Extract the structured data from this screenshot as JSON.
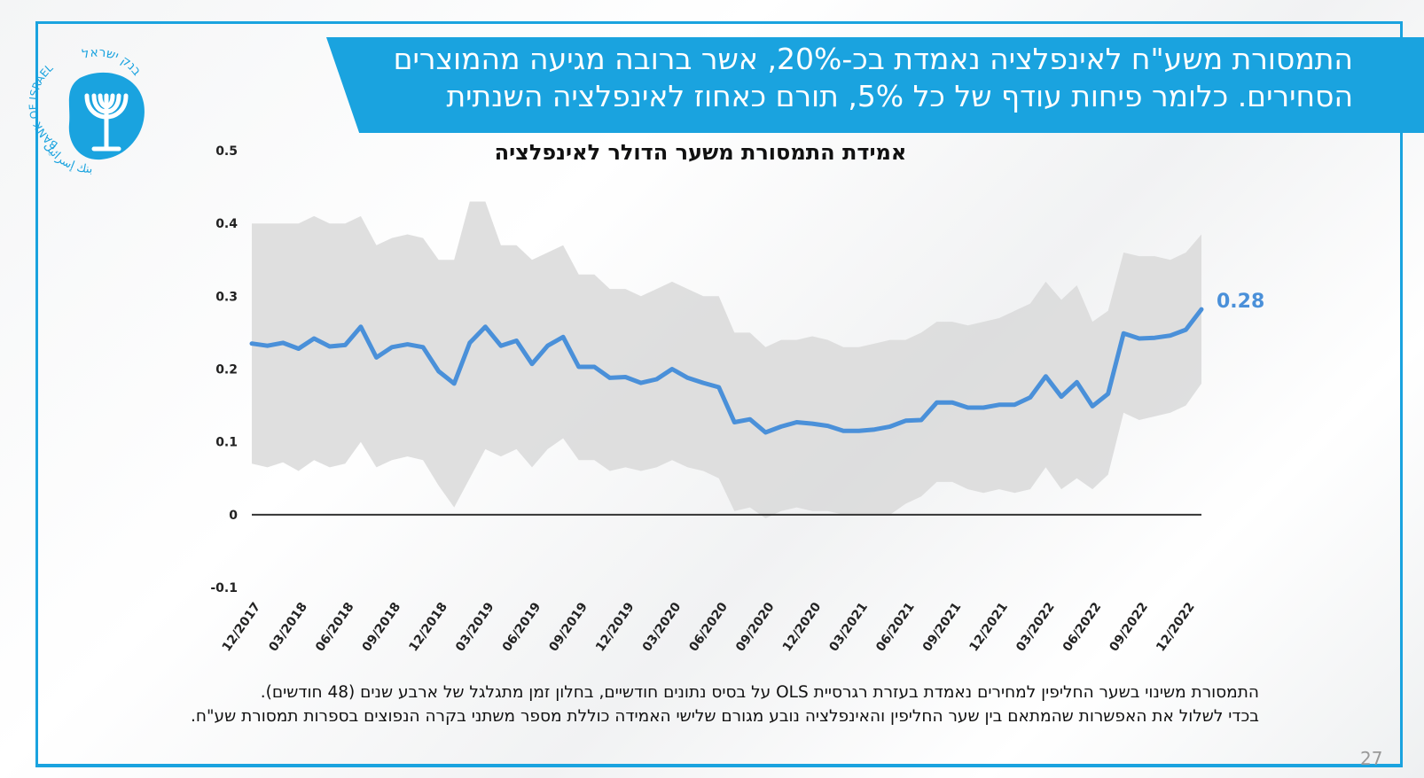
{
  "header": {
    "line1": "התמסורת משע\"ח לאינפלציה נאמדת בכ-20%, אשר ברובה מגיעה מהמוצרים",
    "line2": "הסחירים. כלומר פיחות עודף של כל 5%, תורם כאחוז לאינפלציה השנתית"
  },
  "logo": {
    "text_en": "BANK OF ISRAEL",
    "text_he": "בנק ישראל",
    "text_ar": "بنك إسرائيل",
    "icon": "menorah-icon"
  },
  "notes": {
    "line1": "התמסורת משינוי בשער החליפין למחירים נאמדת בעזרת רגרסיית OLS על בסיס נתונים חודשיים, בחלון זמן מתגלגל של ארבע שנים (48 חודשים).",
    "line2": "בכדי לשלול את האפשרות שהמתאם בין שער החליפין והאינפלציה נובע מגורם שלישי האמידה כוללת מספר משתני בקרה הנפוצים בספרות תמסורת שע\"ח."
  },
  "page_number": "27",
  "colors": {
    "accent": "#1aa3df",
    "line": "#4a90d9",
    "band": "#d9d9d9"
  },
  "chart_data": {
    "type": "line",
    "title": "אמידת התמסורת משער הדולר לאינפלציה",
    "ylim": [
      -0.1,
      0.5
    ],
    "yticks": [
      "0.5",
      "0.4",
      "0.3",
      "0.2",
      "0.1",
      "0",
      "-0.1"
    ],
    "ytick_values": [
      0.5,
      0.4,
      0.3,
      0.2,
      0.1,
      0,
      -0.1
    ],
    "xtick_labels": [
      "12/2017",
      "03/2018",
      "06/2018",
      "09/2018",
      "12/2018",
      "03/2019",
      "06/2019",
      "09/2019",
      "12/2019",
      "03/2020",
      "06/2020",
      "09/2020",
      "12/2020",
      "03/2021",
      "06/2021",
      "09/2021",
      "12/2021",
      "03/2022",
      "06/2022",
      "09/2022",
      "12/2022"
    ],
    "end_label": "0.28",
    "grid": false,
    "series": [
      {
        "values": [
          0.235,
          0.232,
          0.236,
          0.228,
          0.242,
          0.231,
          0.233,
          0.258,
          0.216,
          0.23,
          0.234,
          0.23,
          0.197,
          0.18,
          0.236,
          0.258,
          0.232,
          0.239,
          0.207,
          0.232,
          0.244,
          0.203,
          0.203,
          0.188,
          0.189,
          0.181,
          0.186,
          0.2,
          0.188,
          0.181,
          0.175,
          0.127,
          0.131,
          0.113,
          0.121,
          0.127,
          0.125,
          0.122,
          0.115,
          0.115,
          0.117,
          0.121,
          0.129,
          0.13,
          0.154,
          0.154,
          0.147,
          0.147,
          0.151,
          0.151,
          0.161,
          0.19,
          0.162,
          0.182,
          0.149,
          0.166,
          0.249,
          0.242,
          0.243,
          0.246,
          0.254,
          0.282
        ]
      },
      {
        "upper": [
          0.4,
          0.4,
          0.4,
          0.4,
          0.41,
          0.4,
          0.4,
          0.41,
          0.37,
          0.38,
          0.385,
          0.38,
          0.35,
          0.35,
          0.43,
          0.43,
          0.37,
          0.37,
          0.35,
          0.36,
          0.37,
          0.33,
          0.33,
          0.31,
          0.31,
          0.3,
          0.31,
          0.32,
          0.31,
          0.3,
          0.3,
          0.25,
          0.25,
          0.23,
          0.24,
          0.24,
          0.245,
          0.24,
          0.23,
          0.23,
          0.235,
          0.24,
          0.24,
          0.25,
          0.265,
          0.265,
          0.26,
          0.265,
          0.27,
          0.28,
          0.29,
          0.32,
          0.295,
          0.315,
          0.265,
          0.28,
          0.36,
          0.355,
          0.355,
          0.35,
          0.36,
          0.385
        ],
        "lower": [
          0.07,
          0.065,
          0.072,
          0.06,
          0.075,
          0.065,
          0.07,
          0.1,
          0.065,
          0.075,
          0.08,
          0.075,
          0.04,
          0.01,
          0.05,
          0.09,
          0.08,
          0.09,
          0.065,
          0.09,
          0.105,
          0.075,
          0.075,
          0.06,
          0.065,
          0.06,
          0.065,
          0.075,
          0.065,
          0.06,
          0.05,
          0.005,
          0.01,
          -0.005,
          0.005,
          0.01,
          0.005,
          0.005,
          0.0,
          0.0,
          0.0,
          0.0,
          0.015,
          0.025,
          0.045,
          0.045,
          0.035,
          0.03,
          0.035,
          0.03,
          0.035,
          0.065,
          0.035,
          0.05,
          0.035,
          0.055,
          0.14,
          0.13,
          0.135,
          0.14,
          0.15,
          0.18
        ]
      }
    ]
  }
}
